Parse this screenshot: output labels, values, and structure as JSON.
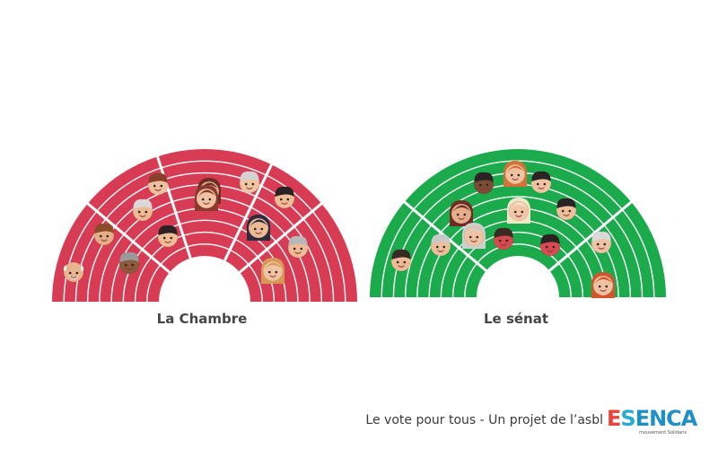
{
  "chambers": [
    {
      "caption": "La Chambre",
      "color": "#d83c54",
      "faces": [
        {
          "skin": "#e8b48d",
          "hair": "#ededed",
          "style": "bald"
        },
        {
          "skin": "#e6ae86",
          "hair": "#8a4d27",
          "style": "short"
        },
        {
          "skin": "#8d5a3b",
          "hair": "#9a9a9a",
          "style": "short"
        },
        {
          "skin": "#eeb892",
          "hair": "#d9d9d9",
          "style": "short"
        },
        {
          "skin": "#f0c09c",
          "hair": "#8a3f2a",
          "style": "short"
        },
        {
          "skin": "#e5a98a",
          "hair": "#6e2d24",
          "style": "long"
        },
        {
          "skin": "#eebd96",
          "hair": "#2b2323",
          "style": "short"
        },
        {
          "skin": "#efc3a1",
          "hair": "#8b3a2d",
          "style": "long"
        },
        {
          "skin": "#ecbb95",
          "hair": "#2d2b3d",
          "style": "long"
        },
        {
          "skin": "#f0c5a1",
          "hair": "#d3d3d3",
          "style": "short"
        },
        {
          "skin": "#eebd96",
          "hair": "#2b2323",
          "style": "short"
        },
        {
          "skin": "#eebb97",
          "hair": "#b8b8b8",
          "style": "short"
        },
        {
          "skin": "#f0c4a1",
          "hair": "#d79a55",
          "style": "long"
        }
      ]
    },
    {
      "caption": "Le sénat",
      "color": "#1bab4c",
      "faces": [
        {
          "skin": "#ecbb95",
          "hair": "#3a2a24",
          "style": "short"
        },
        {
          "skin": "#eebf9c",
          "hair": "#c9c9c9",
          "style": "short"
        },
        {
          "skin": "#e6ad8c",
          "hair": "#6e2d24",
          "style": "long"
        },
        {
          "skin": "#efc3a1",
          "hair": "#cfcfcf",
          "style": "long"
        },
        {
          "skin": "#7a4b35",
          "hair": "#2b2323",
          "style": "short"
        },
        {
          "skin": "#efc2a0",
          "hair": "#d8703a",
          "style": "long"
        },
        {
          "skin": "#f0c6a6",
          "hair": "#efe7c8",
          "style": "long"
        },
        {
          "skin": "#d44a4d",
          "hair": "#3a2a24",
          "style": "short"
        },
        {
          "skin": "#efc3a1",
          "hair": "#2b2323",
          "style": "short"
        },
        {
          "skin": "#eebf9c",
          "hair": "#2b2323",
          "style": "short"
        },
        {
          "skin": "#d94a55",
          "hair": "#2b2323",
          "style": "short"
        },
        {
          "skin": "#efc3a1",
          "hair": "#d9d9d9",
          "style": "short"
        },
        {
          "skin": "#efc3a1",
          "hair": "#d3542d",
          "style": "long"
        }
      ]
    }
  ],
  "footer": {
    "text": "Le vote pour tous - Un projet de l’asbl",
    "logo_text": "Esenca",
    "logo_tagline": "mouvement Solidaris",
    "logo_colors": {
      "e": "#e9443c",
      "s": "#2aa9d6",
      "rest": "#1f8fc8"
    }
  }
}
